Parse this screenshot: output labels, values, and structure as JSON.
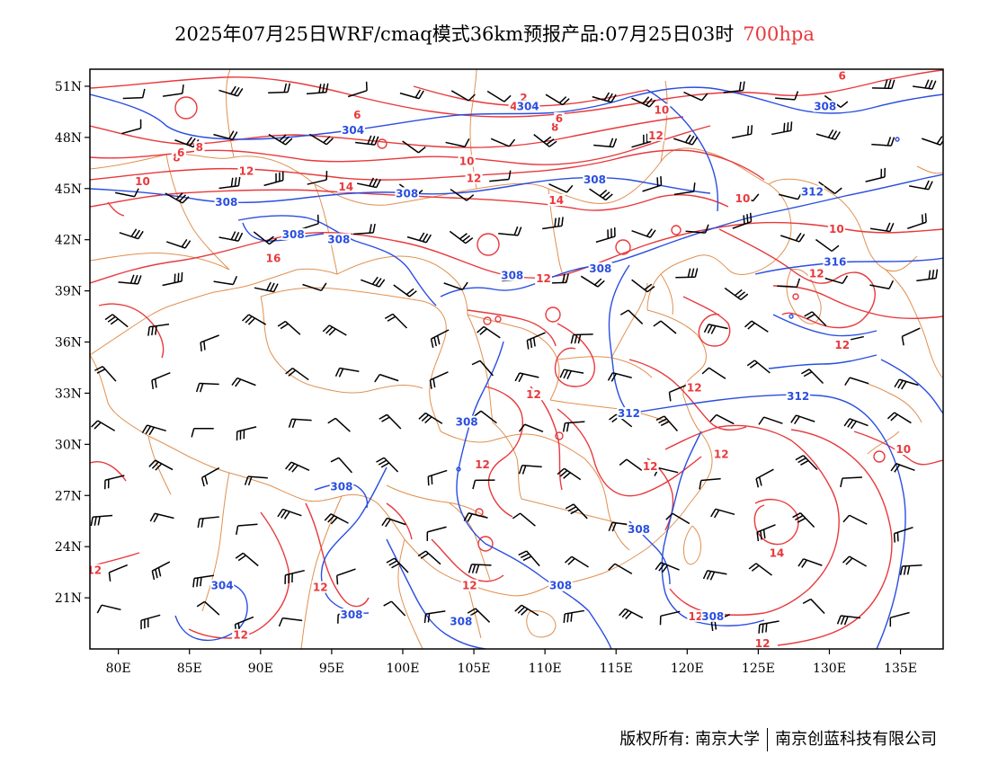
{
  "title": {
    "main": "2025年07月25日WRF/cmaq模式36km预报产品:07月25日03时",
    "level": "700hpa"
  },
  "colors": {
    "temperature_contour": "#e8393c",
    "height_contour": "#2a4ee0",
    "boundary": "#e09050",
    "wind_barb": "#000000"
  },
  "axes": {
    "lat_labels": [
      "51N",
      "48N",
      "45N",
      "42N",
      "39N",
      "36N",
      "33N",
      "30N",
      "27N",
      "24N",
      "21N"
    ],
    "lat_values": [
      51,
      48,
      45,
      42,
      39,
      36,
      33,
      30,
      27,
      24,
      21
    ],
    "lon_labels": [
      "80E",
      "85E",
      "90E",
      "95E",
      "100E",
      "105E",
      "110E",
      "115E",
      "120E",
      "125E",
      "130E",
      "135E"
    ],
    "lon_values": [
      80,
      85,
      90,
      95,
      100,
      105,
      110,
      115,
      120,
      125,
      130,
      135
    ],
    "lon_range": [
      78,
      138
    ],
    "lat_range": [
      18,
      52
    ]
  },
  "contour_labels": {
    "temperature": [
      {
        "text": "2",
        "lon": 108.5,
        "lat": 50.2
      },
      {
        "text": "4",
        "lon": 107.8,
        "lat": 49.7
      },
      {
        "text": "6",
        "lon": 96.8,
        "lat": 49.2
      },
      {
        "text": "8",
        "lon": 85.7,
        "lat": 47.3
      },
      {
        "text": "8",
        "lon": 84.1,
        "lat": 46.7
      },
      {
        "text": "6",
        "lon": 84.4,
        "lat": 47.0
      },
      {
        "text": "8",
        "lon": 110.7,
        "lat": 48.5
      },
      {
        "text": "6",
        "lon": 111.0,
        "lat": 49.0
      },
      {
        "text": "10",
        "lon": 104.5,
        "lat": 46.5
      },
      {
        "text": "10",
        "lon": 118.2,
        "lat": 49.5
      },
      {
        "text": "12",
        "lon": 89.0,
        "lat": 45.9
      },
      {
        "text": "12",
        "lon": 105.0,
        "lat": 45.5
      },
      {
        "text": "12",
        "lon": 117.8,
        "lat": 48.0
      },
      {
        "text": "10",
        "lon": 81.7,
        "lat": 45.3
      },
      {
        "text": "14",
        "lon": 96.0,
        "lat": 45.0
      },
      {
        "text": "14",
        "lon": 110.8,
        "lat": 44.2
      },
      {
        "text": "10",
        "lon": 123.9,
        "lat": 44.3
      },
      {
        "text": "10",
        "lon": 130.5,
        "lat": 42.5
      },
      {
        "text": "16",
        "lon": 90.9,
        "lat": 40.8
      },
      {
        "text": "12",
        "lon": 109.9,
        "lat": 39.6
      },
      {
        "text": "12",
        "lon": 129.1,
        "lat": 39.9
      },
      {
        "text": "12",
        "lon": 130.9,
        "lat": 35.7
      },
      {
        "text": "12",
        "lon": 120.5,
        "lat": 33.2
      },
      {
        "text": "12",
        "lon": 109.2,
        "lat": 32.8
      },
      {
        "text": "12",
        "lon": 105.6,
        "lat": 28.7
      },
      {
        "text": "12",
        "lon": 117.4,
        "lat": 28.6
      },
      {
        "text": "12",
        "lon": 122.4,
        "lat": 29.3
      },
      {
        "text": "10",
        "lon": 135.2,
        "lat": 29.6
      },
      {
        "text": "14",
        "lon": 126.3,
        "lat": 23.5
      },
      {
        "text": "12",
        "lon": 78.3,
        "lat": 22.5
      },
      {
        "text": "12",
        "lon": 94.2,
        "lat": 21.5
      },
      {
        "text": "12",
        "lon": 104.7,
        "lat": 21.6
      },
      {
        "text": "12",
        "lon": 88.6,
        "lat": 18.7
      },
      {
        "text": "12",
        "lon": 120.6,
        "lat": 19.8
      },
      {
        "text": "12",
        "lon": 125.3,
        "lat": 18.2
      },
      {
        "text": "6",
        "lon": 130.9,
        "lat": 51.5
      }
    ],
    "height": [
      {
        "text": "304",
        "lon": 108.8,
        "lat": 49.7
      },
      {
        "text": "304",
        "lon": 96.5,
        "lat": 48.3
      },
      {
        "text": "308",
        "lon": 129.7,
        "lat": 49.7
      },
      {
        "text": "308",
        "lon": 87.6,
        "lat": 44.1
      },
      {
        "text": "308",
        "lon": 100.3,
        "lat": 44.6
      },
      {
        "text": "308",
        "lon": 113.5,
        "lat": 45.4
      },
      {
        "text": "312",
        "lon": 128.8,
        "lat": 44.7
      },
      {
        "text": "308",
        "lon": 92.3,
        "lat": 42.2
      },
      {
        "text": "308",
        "lon": 95.5,
        "lat": 41.9
      },
      {
        "text": "308",
        "lon": 107.7,
        "lat": 39.8
      },
      {
        "text": "308",
        "lon": 113.9,
        "lat": 40.2
      },
      {
        "text": "316",
        "lon": 130.4,
        "lat": 40.6
      },
      {
        "text": "312",
        "lon": 127.8,
        "lat": 32.7
      },
      {
        "text": "312",
        "lon": 115.9,
        "lat": 31.7
      },
      {
        "text": "308",
        "lon": 104.5,
        "lat": 31.2
      },
      {
        "text": "308",
        "lon": 95.7,
        "lat": 27.4
      },
      {
        "text": "308",
        "lon": 116.6,
        "lat": 24.9
      },
      {
        "text": "308",
        "lon": 111.1,
        "lat": 21.6
      },
      {
        "text": "304",
        "lon": 87.3,
        "lat": 21.6
      },
      {
        "text": "308",
        "lon": 96.4,
        "lat": 19.9
      },
      {
        "text": "308",
        "lon": 104.1,
        "lat": 19.5
      },
      {
        "text": "308",
        "lon": 121.8,
        "lat": 19.8
      }
    ]
  },
  "footer": {
    "copyright": "版权所有: 南京大学",
    "company": "南京创蓝科技有限公司"
  }
}
